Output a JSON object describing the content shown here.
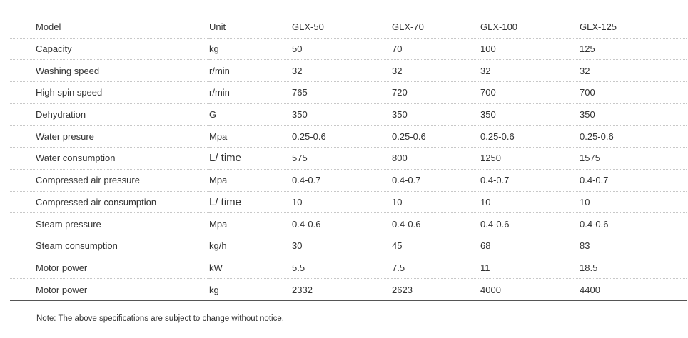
{
  "table": {
    "headers": [
      "Model",
      "Unit",
      "GLX-50",
      "GLX-70",
      "GLX-100",
      "GLX-125"
    ],
    "rows": [
      [
        "Capacity",
        "kg",
        "50",
        "70",
        "100",
        "125"
      ],
      [
        "Washing speed",
        "r/min",
        "32",
        "32",
        "32",
        "32"
      ],
      [
        "High spin speed",
        "r/min",
        "765",
        "720",
        "700",
        "700"
      ],
      [
        "Dehydration",
        "G",
        "350",
        "350",
        "350",
        "350"
      ],
      [
        "Water presure",
        "Mpa",
        "0.25-0.6",
        "0.25-0.6",
        "0.25-0.6",
        "0.25-0.6"
      ],
      [
        "Water consumption",
        "L/ time",
        "575",
        "800",
        "1250",
        "1575"
      ],
      [
        "Compressed air pressure",
        "Mpa",
        "0.4-0.7",
        "0.4-0.7",
        "0.4-0.7",
        "0.4-0.7"
      ],
      [
        "Compressed air consumption",
        "L/ time",
        "10",
        "10",
        "10",
        "10"
      ],
      [
        "Steam pressure",
        "Mpa",
        "0.4-0.6",
        "0.4-0.6",
        "0.4-0.6",
        "0.4-0.6"
      ],
      [
        "Steam consumption",
        "kg/h",
        "30",
        "45",
        "68",
        "83"
      ],
      [
        "Motor power",
        "kW",
        "5.5",
        "7.5",
        "11",
        "18.5"
      ],
      [
        "Motor power",
        "kg",
        "2332",
        "2623",
        "4000",
        "4400"
      ]
    ]
  },
  "note": "Note: The above specifications are subject to change without notice."
}
